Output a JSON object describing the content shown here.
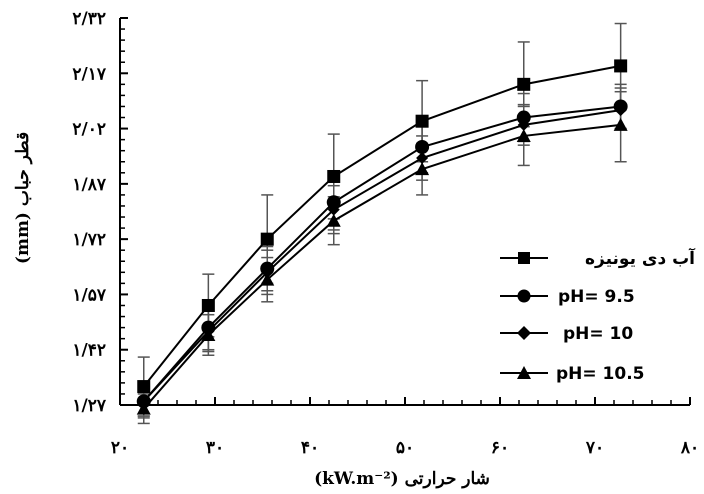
{
  "chart_data": {
    "type": "line",
    "xlabel": "شار حرارتی (kW.m⁻²)",
    "ylabel": "قطر حباب (mm)",
    "xlim": [
      20,
      80
    ],
    "ylim": [
      1.27,
      2.32
    ],
    "x_ticks": [
      20,
      30,
      40,
      50,
      60,
      70,
      80
    ],
    "x_tick_labels": [
      "۲۰",
      "۳۰",
      "۴۰",
      "۵۰",
      "۶۰",
      "۷۰",
      "۸۰"
    ],
    "y_ticks": [
      1.27,
      1.42,
      1.57,
      1.72,
      1.87,
      2.02,
      2.17,
      2.32
    ],
    "y_tick_labels": [
      "۱/۲۷",
      "۱/۴۲",
      "۱/۵۷",
      "۱/۷۲",
      "۱/۸۷",
      "۲/۰۲",
      "۲/۱۷",
      "۲/۳۲"
    ],
    "grid": false,
    "legend_position": "bottom-right",
    "x": [
      22.5,
      29.3,
      35.5,
      42.5,
      51.8,
      62.5,
      72.7
    ],
    "series": [
      {
        "name": "آب دی یونیزه",
        "marker": "square",
        "values": [
          1.32,
          1.54,
          1.72,
          1.89,
          2.04,
          2.14,
          2.19
        ],
        "errors": [
          0.08,
          0.085,
          0.12,
          0.115,
          0.11,
          0.115,
          0.115
        ]
      },
      {
        "name": "pH= 9.5",
        "marker": "circle",
        "values": [
          1.28,
          1.48,
          1.64,
          1.82,
          1.97,
          2.05,
          2.08
        ],
        "errors": [
          0.045,
          0.06,
          0.06,
          0.075,
          0.07,
          0.065,
          0.06
        ]
      },
      {
        "name": "pH= 10",
        "marker": "diamond",
        "values": [
          1.28,
          1.47,
          1.63,
          1.8,
          1.94,
          2.03,
          2.07
        ],
        "errors": [
          0.04,
          0.055,
          0.06,
          0.065,
          0.06,
          0.055,
          0.05
        ]
      },
      {
        "name": "pH= 10.5",
        "marker": "triangle",
        "values": [
          1.26,
          1.46,
          1.61,
          1.77,
          1.91,
          2.0,
          2.03
        ],
        "errors": [
          0.04,
          0.055,
          0.06,
          0.065,
          0.07,
          0.08,
          0.1
        ]
      }
    ]
  }
}
